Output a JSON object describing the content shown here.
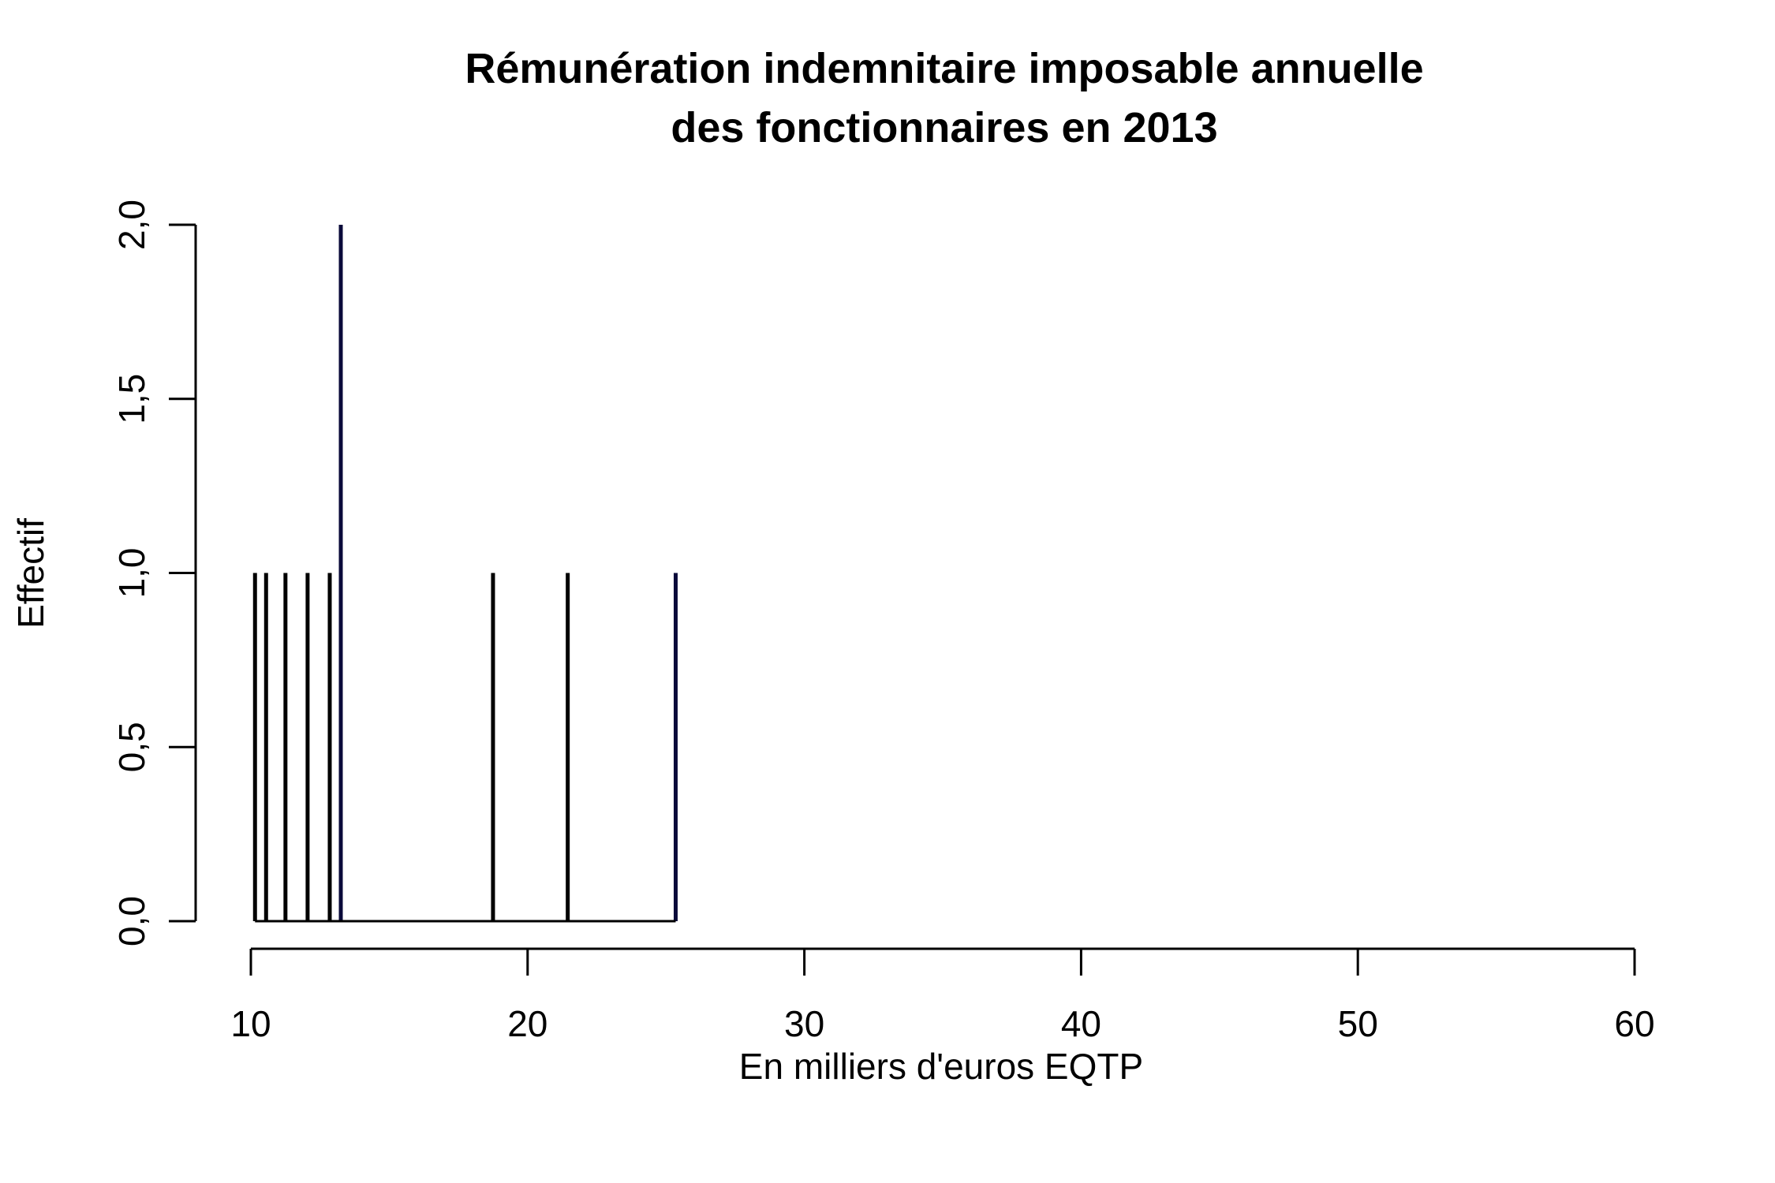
{
  "chart_data": {
    "type": "bar",
    "title_lines": [
      "Rémunération indemnitaire imposable annuelle",
      "des fonctionnaires en 2013"
    ],
    "xlabel": "En milliers d'euros EQTP",
    "ylabel": "Effectif",
    "xlim": [
      10,
      60
    ],
    "ylim": [
      0,
      2
    ],
    "x_ticks": [
      10,
      20,
      30,
      40,
      50,
      60
    ],
    "x_tick_labels": [
      "10",
      "20",
      "30",
      "40",
      "50",
      "60"
    ],
    "y_ticks": [
      0,
      0.5,
      1,
      1.5,
      2
    ],
    "y_tick_labels": [
      "0,0",
      "0,5",
      "1,0",
      "1,5",
      "2,0"
    ],
    "x": [
      10.15,
      10.55,
      11.25,
      12.05,
      12.85,
      13.25,
      18.75,
      21.45,
      25.35
    ],
    "values": [
      1,
      1,
      1,
      1,
      1,
      2,
      1,
      1,
      1
    ],
    "colors": [
      "#000000",
      "#000000",
      "#000000",
      "#000000",
      "#000000",
      "#0a0a3a",
      "#000000",
      "#000000",
      "#0a0a3a"
    ],
    "grid": false
  }
}
